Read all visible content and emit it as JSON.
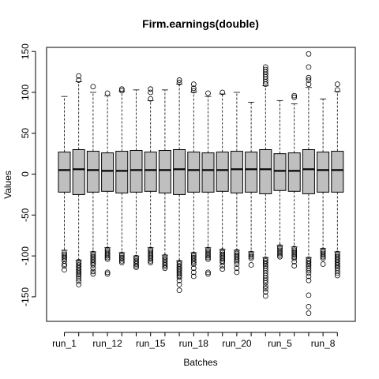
{
  "chart_data": {
    "type": "boxplot",
    "title": "Firm.earnings(double)",
    "xlabel": "Batches",
    "ylabel": "Values",
    "ylim": [
      -180,
      155
    ],
    "yticks": [
      -150,
      -100,
      -50,
      0,
      50,
      100,
      150
    ],
    "xtick_labels": [
      {
        "label": "run_1",
        "position": 1
      },
      {
        "label": "run_12",
        "position": 4
      },
      {
        "label": "run_15",
        "position": 7
      },
      {
        "label": "run_18",
        "position": 10
      },
      {
        "label": "run_20",
        "position": 13
      },
      {
        "label": "run_5",
        "position": 16
      },
      {
        "label": "run_8",
        "position": 19
      }
    ],
    "colors": {
      "box_fill": "#bfbfbf",
      "stroke": "#000000"
    },
    "boxes": [
      {
        "q1": -22,
        "median": 5,
        "q3": 27,
        "whisker_low": -93,
        "whisker_high": 95,
        "outliers": [
          -96,
          -98,
          -100,
          -102,
          -104,
          -106,
          -110,
          -112,
          -117
        ]
      },
      {
        "q1": -25,
        "median": 6,
        "q3": 30,
        "whisker_low": -105,
        "whisker_high": 113,
        "outliers": [
          -107,
          -109,
          -111,
          -113,
          -115,
          -117,
          -119,
          -121,
          -123,
          -125,
          -128,
          -131,
          -135,
          115,
          120
        ]
      },
      {
        "q1": -22,
        "median": 5,
        "q3": 28,
        "whisker_low": -95,
        "whisker_high": 100,
        "outliers": [
          -97,
          -99,
          -101,
          -103,
          -105,
          -107,
          -109,
          -111,
          -115,
          -119,
          -122,
          107
        ]
      },
      {
        "q1": -21,
        "median": 4,
        "q3": 26,
        "whisker_low": -90,
        "whisker_high": 96,
        "outliers": [
          -92,
          -94,
          -96,
          -98,
          -100,
          -102,
          -104,
          -120,
          -122,
          99
        ]
      },
      {
        "q1": -23,
        "median": 4,
        "q3": 28,
        "whisker_low": -96,
        "whisker_high": 101,
        "outliers": [
          -98,
          -100,
          -102,
          -104,
          -106,
          -108,
          102,
          104
        ]
      },
      {
        "q1": -22,
        "median": 5,
        "q3": 29,
        "whisker_low": -100,
        "whisker_high": 103,
        "outliers": [
          -102,
          -104,
          -106,
          -108,
          -110,
          -112,
          -114
        ]
      },
      {
        "q1": -21,
        "median": 5,
        "q3": 27,
        "whisker_low": -90,
        "whisker_high": 90,
        "outliers": [
          -92,
          -94,
          -96,
          -98,
          -100,
          -102,
          -104,
          -106,
          -108,
          92,
          100,
          104
        ]
      },
      {
        "q1": -23,
        "median": 5,
        "q3": 29,
        "whisker_low": -99,
        "whisker_high": 103,
        "outliers": [
          -101,
          -103,
          -105,
          -107,
          -109,
          -111,
          -113,
          -115
        ]
      },
      {
        "q1": -25,
        "median": 6,
        "q3": 30,
        "whisker_low": -106,
        "whisker_high": 110,
        "outliers": [
          -108,
          -110,
          -112,
          -114,
          -116,
          -118,
          -120,
          -122,
          -124,
          -126,
          -130,
          -135,
          -142,
          112,
          115
        ]
      },
      {
        "q1": -22,
        "median": 5,
        "q3": 27,
        "whisker_low": -96,
        "whisker_high": 100,
        "outliers": [
          -98,
          -100,
          -102,
          -104,
          -106,
          -108,
          -110,
          -115,
          -120,
          -125,
          102,
          105,
          110
        ]
      },
      {
        "q1": -22,
        "median": 5,
        "q3": 26,
        "whisker_low": -90,
        "whisker_high": 95,
        "outliers": [
          -92,
          -94,
          -96,
          -98,
          -100,
          -102,
          -104,
          -120,
          -122,
          99
        ]
      },
      {
        "q1": -21,
        "median": 5,
        "q3": 27,
        "whisker_low": -92,
        "whisker_high": 98,
        "outliers": [
          -94,
          -96,
          -98,
          -100,
          -102,
          -104,
          -106,
          -108,
          -112,
          -116,
          100
        ]
      },
      {
        "q1": -23,
        "median": 6,
        "q3": 28,
        "whisker_low": -93,
        "whisker_high": 100,
        "outliers": [
          -95,
          -97,
          -99,
          -101,
          -103,
          -105,
          -107,
          -110,
          -115,
          -120
        ]
      },
      {
        "q1": -22,
        "median": 6,
        "q3": 27,
        "whisker_low": -95,
        "whisker_high": 88,
        "outliers": [
          -97,
          -99,
          -101,
          -103,
          -111
        ]
      },
      {
        "q1": -24,
        "median": 6,
        "q3": 30,
        "whisker_low": -102,
        "whisker_high": 108,
        "outliers": [
          -104,
          -106,
          -108,
          -110,
          -112,
          -115,
          -118,
          -121,
          -124,
          -127,
          -130,
          -133,
          -137,
          -140,
          -144,
          -149,
          110,
          113,
          116,
          119,
          122,
          125,
          128,
          131
        ]
      },
      {
        "q1": -20,
        "median": 4,
        "q3": 25,
        "whisker_low": -87,
        "whisker_high": 90,
        "outliers": [
          -89,
          -91,
          -93,
          -95,
          -97,
          -99,
          -101
        ]
      },
      {
        "q1": -21,
        "median": 4,
        "q3": 26,
        "whisker_low": -89,
        "whisker_high": 86,
        "outliers": [
          -91,
          -93,
          -95,
          -97,
          -99,
          -101,
          -103,
          -107,
          -112,
          94,
          96
        ]
      },
      {
        "q1": -24,
        "median": 6,
        "q3": 30,
        "whisker_low": -102,
        "whisker_high": 106,
        "outliers": [
          -104,
          -106,
          -108,
          -110,
          -112,
          -115,
          -118,
          -121,
          -125,
          -130,
          -148,
          -162,
          -170,
          110,
          115,
          118,
          131,
          147
        ]
      },
      {
        "q1": -22,
        "median": 5,
        "q3": 27,
        "whisker_low": -91,
        "whisker_high": 92,
        "outliers": [
          -93,
          -95,
          -97,
          -99,
          -101,
          -103,
          -110
        ]
      },
      {
        "q1": -22,
        "median": 5,
        "q3": 28,
        "whisker_low": -95,
        "whisker_high": 101,
        "outliers": [
          -97,
          -99,
          -101,
          -103,
          -105,
          -107,
          -109,
          -111,
          -113,
          -115,
          -118,
          -121,
          -124,
          103,
          110
        ]
      }
    ]
  }
}
